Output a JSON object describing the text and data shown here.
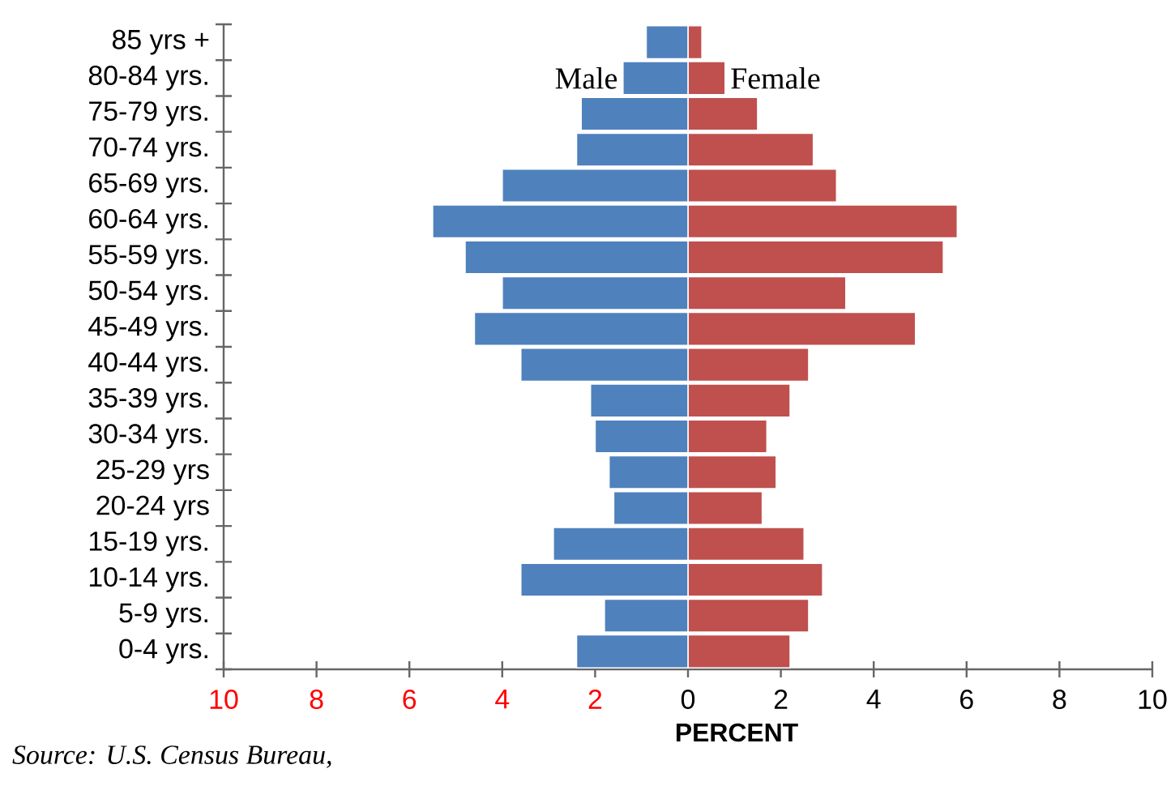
{
  "chart_data": {
    "type": "bar",
    "orientation": "horizontal",
    "xlabel": "PERCENT",
    "categories": [
      "85 yrs +",
      "80-84 yrs.",
      "75-79 yrs.",
      "70-74 yrs.",
      "65-69 yrs.",
      "60-64 yrs.",
      "55-59 yrs.",
      "50-54 yrs.",
      "45-49 yrs.",
      "40-44 yrs.",
      "35-39 yrs.",
      "30-34 yrs.",
      "25-29 yrs",
      "20-24 yrs",
      "15-19 yrs.",
      "10-14 yrs.",
      "5-9 yrs.",
      "0-4 yrs."
    ],
    "series": [
      {
        "name": "Male",
        "color": "#4f81bd",
        "values": [
          -0.9,
          -1.4,
          -2.3,
          -2.4,
          -4.0,
          -5.5,
          -4.8,
          -4.0,
          -4.6,
          -3.6,
          -2.1,
          -2.0,
          -1.7,
          -1.6,
          -2.9,
          -3.6,
          -1.8,
          -2.4
        ]
      },
      {
        "name": "Female",
        "color": "#c0504d",
        "values": [
          0.3,
          0.8,
          1.5,
          2.7,
          3.2,
          5.8,
          5.5,
          3.4,
          4.9,
          2.6,
          2.2,
          1.7,
          1.9,
          1.6,
          2.5,
          2.9,
          2.6,
          2.2
        ]
      }
    ],
    "xlim": [
      -10,
      10
    ],
    "xticks": [
      {
        "value": -10,
        "label": "10"
      },
      {
        "value": -8,
        "label": "8"
      },
      {
        "value": -6,
        "label": "6"
      },
      {
        "value": -4,
        "label": "4"
      },
      {
        "value": -2,
        "label": "2"
      },
      0,
      2,
      4,
      6,
      8,
      10
    ],
    "grid": false,
    "stacked": true,
    "annotations": [
      "Source:  U.S. Census Bureau,"
    ]
  }
}
